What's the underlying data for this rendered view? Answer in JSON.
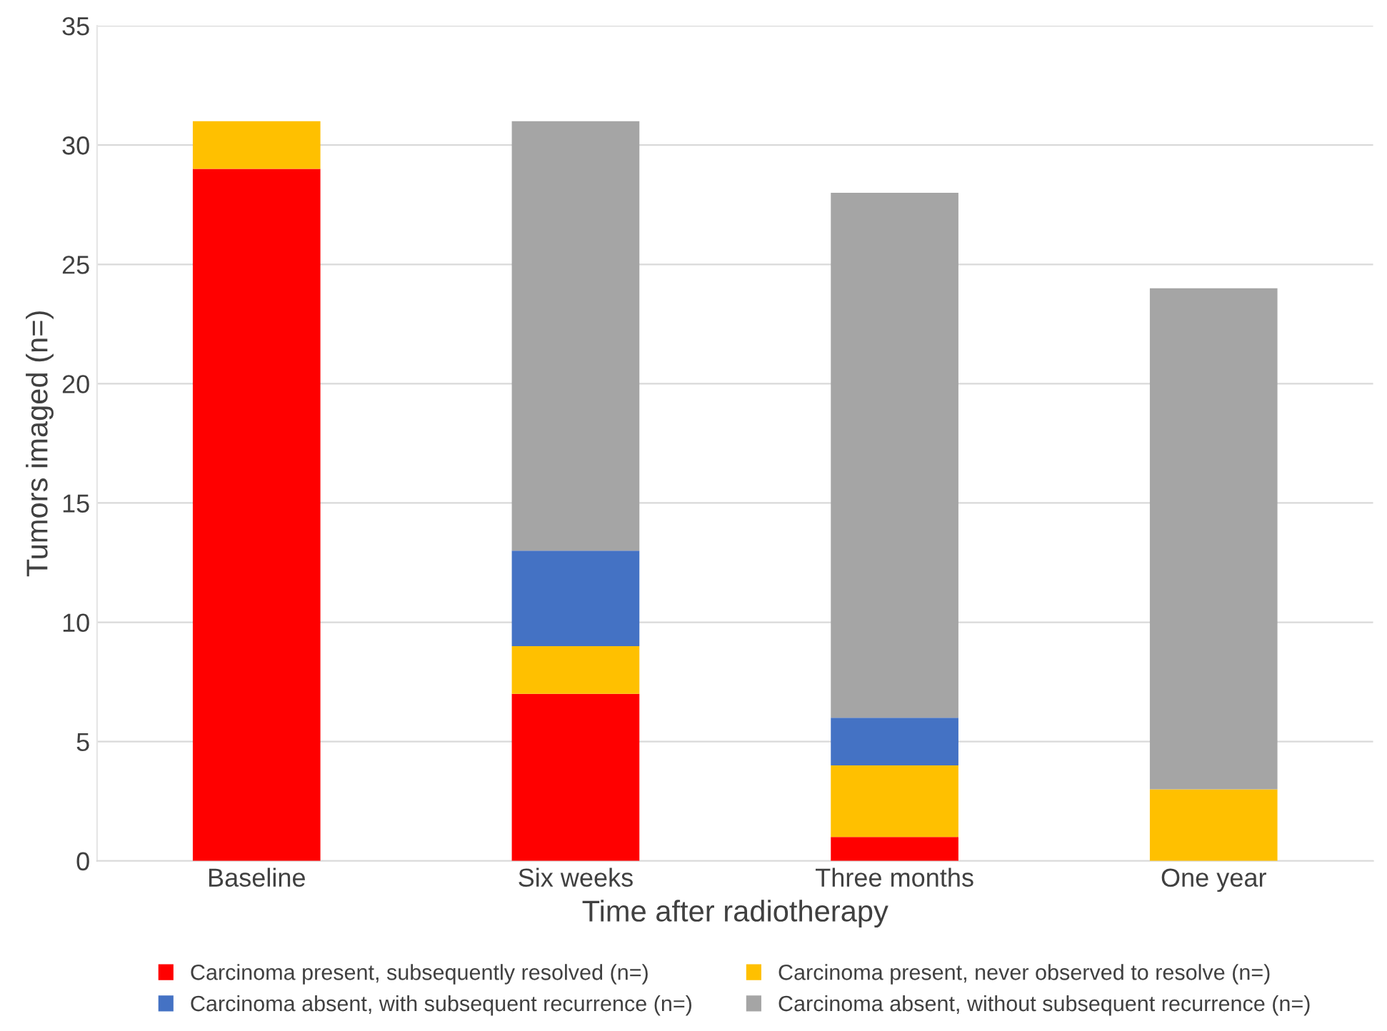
{
  "chart_data": {
    "type": "bar",
    "stacked": true,
    "xlabel": "Time after radiotherapy",
    "ylabel": "Tumors imaged (n=)",
    "categories": [
      "Baseline",
      "Six weeks",
      "Three months",
      "One year"
    ],
    "series": [
      {
        "name": "Carcinoma present, subsequently resolved (n=)",
        "color": "#ff0000",
        "values": [
          29,
          7,
          1,
          0
        ]
      },
      {
        "name": "Carcinoma present, never observed to resolve (n=)",
        "color": "#ffc000",
        "values": [
          2,
          2,
          3,
          3
        ]
      },
      {
        "name": "Carcinoma absent, with subsequent recurrence (n=)",
        "color": "#4472c4",
        "values": [
          0,
          4,
          2,
          0
        ]
      },
      {
        "name": "Carcinoma absent, without subsequent recurrence (n=)",
        "color": "#a5a5a5",
        "values": [
          0,
          18,
          22,
          21
        ]
      }
    ],
    "ylim": [
      0,
      35
    ],
    "yticks": [
      0,
      5,
      10,
      15,
      20,
      25,
      30,
      35
    ],
    "grid": "y",
    "legend": "bottom"
  }
}
